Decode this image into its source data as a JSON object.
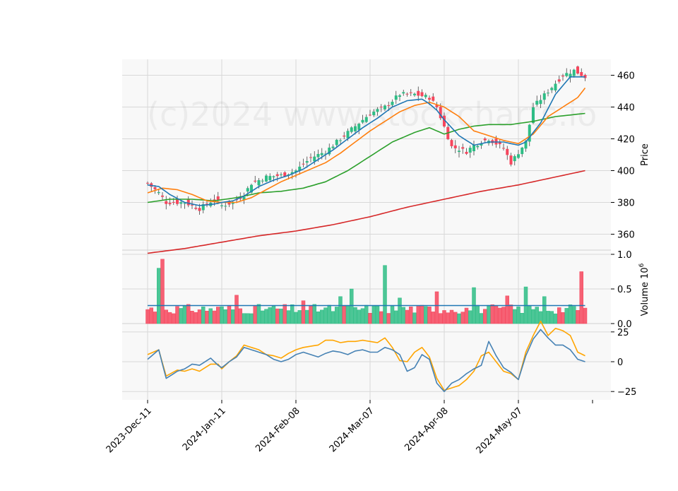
{
  "chart_data": {
    "type": "candlestick",
    "watermark": "(c)2024 www.stockcharts.io",
    "colors": {
      "up": "#2ebd85",
      "down": "#f6465d",
      "ma5": "#1f77b4",
      "ma10": "#ff7f0e",
      "ma20": "#2ca02c",
      "ma100": "#d62728",
      "vol_ma": "#1f77b4",
      "osc1": "#4682b4",
      "osc2": "#ffa500",
      "panel_bg": "#f8f8f8",
      "grid": "#d8d8d8"
    },
    "x_tick_labels": [
      "2023-Dec-11",
      "2024-Jan-11",
      "2024-Feb-08",
      "2024-Mar-07",
      "2024-Apr-08",
      "2024-May-07"
    ],
    "x_tick_index": [
      0,
      20,
      40,
      60,
      80,
      100
    ],
    "n": 119,
    "price_panel": {
      "ylabel": "Price",
      "ylim": [
        350,
        470
      ],
      "yticks": [
        360,
        380,
        400,
        420,
        440,
        460
      ],
      "anchors": {
        "close": [
          [
            0,
            392
          ],
          [
            3,
            386
          ],
          [
            5,
            380
          ],
          [
            10,
            380
          ],
          [
            14,
            376
          ],
          [
            18,
            382
          ],
          [
            20,
            378
          ],
          [
            23,
            380
          ],
          [
            26,
            385
          ],
          [
            28,
            392
          ],
          [
            32,
            396
          ],
          [
            36,
            397
          ],
          [
            40,
            400
          ],
          [
            44,
            408
          ],
          [
            48,
            412
          ],
          [
            52,
            420
          ],
          [
            56,
            428
          ],
          [
            60,
            436
          ],
          [
            64,
            440
          ],
          [
            68,
            448
          ],
          [
            72,
            448
          ],
          [
            76,
            446
          ],
          [
            78,
            440
          ],
          [
            82,
            415
          ],
          [
            86,
            412
          ],
          [
            88,
            416
          ],
          [
            92,
            420
          ],
          [
            96,
            414
          ],
          [
            98,
            405
          ],
          [
            102,
            418
          ],
          [
            104,
            440
          ],
          [
            108,
            450
          ],
          [
            112,
            460
          ],
          [
            115,
            463
          ],
          [
            118,
            459
          ]
        ],
        "ma5": [
          [
            0,
            391
          ],
          [
            3,
            390
          ],
          [
            6,
            385
          ],
          [
            10,
            380
          ],
          [
            14,
            378
          ],
          [
            18,
            379
          ],
          [
            20,
            380
          ],
          [
            23,
            381
          ],
          [
            26,
            384
          ],
          [
            30,
            390
          ],
          [
            34,
            394
          ],
          [
            38,
            397
          ],
          [
            42,
            401
          ],
          [
            46,
            407
          ],
          [
            50,
            413
          ],
          [
            54,
            420
          ],
          [
            58,
            427
          ],
          [
            62,
            433
          ],
          [
            66,
            440
          ],
          [
            70,
            444
          ],
          [
            74,
            445
          ],
          [
            76,
            442
          ],
          [
            78,
            438
          ],
          [
            80,
            432
          ],
          [
            84,
            422
          ],
          [
            88,
            416
          ],
          [
            92,
            418
          ],
          [
            96,
            418
          ],
          [
            100,
            416
          ],
          [
            102,
            418
          ],
          [
            106,
            430
          ],
          [
            110,
            448
          ],
          [
            114,
            459
          ],
          [
            118,
            459
          ]
        ],
        "ma10": [
          [
            0,
            386
          ],
          [
            4,
            389
          ],
          [
            8,
            388
          ],
          [
            12,
            385
          ],
          [
            16,
            381
          ],
          [
            20,
            380
          ],
          [
            24,
            380
          ],
          [
            28,
            383
          ],
          [
            32,
            388
          ],
          [
            36,
            393
          ],
          [
            40,
            397
          ],
          [
            44,
            401
          ],
          [
            48,
            405
          ],
          [
            52,
            411
          ],
          [
            56,
            418
          ],
          [
            60,
            425
          ],
          [
            64,
            431
          ],
          [
            68,
            437
          ],
          [
            72,
            441
          ],
          [
            76,
            443
          ],
          [
            80,
            440
          ],
          [
            84,
            434
          ],
          [
            88,
            425
          ],
          [
            92,
            422
          ],
          [
            96,
            419
          ],
          [
            100,
            417
          ],
          [
            104,
            423
          ],
          [
            108,
            434
          ],
          [
            112,
            440
          ],
          [
            116,
            446
          ],
          [
            118,
            452
          ]
        ],
        "ma20": [
          [
            0,
            380
          ],
          [
            6,
            382
          ],
          [
            12,
            382
          ],
          [
            18,
            381
          ],
          [
            24,
            383
          ],
          [
            30,
            386
          ],
          [
            36,
            387
          ],
          [
            42,
            389
          ],
          [
            48,
            393
          ],
          [
            54,
            400
          ],
          [
            60,
            409
          ],
          [
            66,
            418
          ],
          [
            72,
            424
          ],
          [
            76,
            427
          ],
          [
            80,
            423
          ],
          [
            84,
            426
          ],
          [
            88,
            428
          ],
          [
            92,
            429
          ],
          [
            98,
            429
          ],
          [
            104,
            431
          ],
          [
            110,
            434
          ],
          [
            118,
            436
          ]
        ],
        "ma100": [
          [
            0,
            348
          ],
          [
            10,
            351
          ],
          [
            20,
            355
          ],
          [
            30,
            359
          ],
          [
            40,
            362
          ],
          [
            50,
            366
          ],
          [
            60,
            371
          ],
          [
            70,
            377
          ],
          [
            80,
            382
          ],
          [
            90,
            387
          ],
          [
            100,
            391
          ],
          [
            110,
            396
          ],
          [
            118,
            400
          ]
        ]
      }
    },
    "volume_panel": {
      "ylabel": "Volume  10",
      "ylabel_exp": "6",
      "ylim": [
        0,
        1.0
      ],
      "yticks": [
        0.0,
        0.5,
        1.0
      ],
      "tick_labels": [
        "0.0",
        "0.5",
        "1.0"
      ],
      "base": 0.22,
      "spikes": [
        [
          3,
          0.8
        ],
        [
          4,
          0.93
        ],
        [
          24,
          0.41
        ],
        [
          42,
          0.33
        ],
        [
          52,
          0.39
        ],
        [
          55,
          0.5
        ],
        [
          64,
          0.84
        ],
        [
          68,
          0.37
        ],
        [
          78,
          0.46
        ],
        [
          88,
          0.52
        ],
        [
          97,
          0.4
        ],
        [
          102,
          0.53
        ],
        [
          107,
          0.39
        ],
        [
          117,
          0.75
        ]
      ],
      "ma_level": 0.26
    },
    "oscillator_panel": {
      "ylim": [
        -32,
        32
      ],
      "yticks": [
        -25,
        0,
        25
      ],
      "tick_labels": [
        "−25",
        "0",
        "25"
      ],
      "line1": [
        [
          0,
          2
        ],
        [
          3,
          10
        ],
        [
          5,
          -14
        ],
        [
          8,
          -8
        ],
        [
          10,
          -6
        ],
        [
          12,
          -2
        ],
        [
          14,
          -3
        ],
        [
          17,
          3
        ],
        [
          19,
          -3
        ],
        [
          20,
          -5
        ],
        [
          22,
          0
        ],
        [
          24,
          4
        ],
        [
          26,
          12
        ],
        [
          28,
          10
        ],
        [
          30,
          8
        ],
        [
          32,
          6
        ],
        [
          34,
          2
        ],
        [
          36,
          0
        ],
        [
          38,
          2
        ],
        [
          40,
          6
        ],
        [
          42,
          8
        ],
        [
          44,
          6
        ],
        [
          46,
          4
        ],
        [
          48,
          7
        ],
        [
          50,
          9
        ],
        [
          52,
          8
        ],
        [
          54,
          6
        ],
        [
          56,
          9
        ],
        [
          58,
          10
        ],
        [
          60,
          8
        ],
        [
          62,
          8
        ],
        [
          64,
          12
        ],
        [
          66,
          10
        ],
        [
          68,
          6
        ],
        [
          70,
          -8
        ],
        [
          72,
          -5
        ],
        [
          74,
          6
        ],
        [
          76,
          2
        ],
        [
          78,
          -18
        ],
        [
          80,
          -25
        ],
        [
          82,
          -18
        ],
        [
          84,
          -15
        ],
        [
          86,
          -10
        ],
        [
          88,
          -6
        ],
        [
          90,
          -3
        ],
        [
          92,
          17
        ],
        [
          94,
          5
        ],
        [
          96,
          -5
        ],
        [
          98,
          -9
        ],
        [
          100,
          -15
        ],
        [
          102,
          5
        ],
        [
          104,
          19
        ],
        [
          106,
          27
        ],
        [
          108,
          20
        ],
        [
          110,
          14
        ],
        [
          112,
          14
        ],
        [
          114,
          10
        ],
        [
          116,
          2
        ],
        [
          118,
          0
        ]
      ],
      "line2": [
        [
          0,
          6
        ],
        [
          3,
          10
        ],
        [
          5,
          -12
        ],
        [
          8,
          -7
        ],
        [
          10,
          -8
        ],
        [
          12,
          -6
        ],
        [
          14,
          -8
        ],
        [
          17,
          -2
        ],
        [
          19,
          -2
        ],
        [
          20,
          -6
        ],
        [
          22,
          0
        ],
        [
          24,
          5
        ],
        [
          26,
          14
        ],
        [
          28,
          12
        ],
        [
          30,
          10
        ],
        [
          32,
          6
        ],
        [
          34,
          5
        ],
        [
          36,
          3
        ],
        [
          38,
          7
        ],
        [
          40,
          10
        ],
        [
          42,
          12
        ],
        [
          44,
          13
        ],
        [
          46,
          14
        ],
        [
          48,
          18
        ],
        [
          50,
          18
        ],
        [
          52,
          16
        ],
        [
          54,
          17
        ],
        [
          56,
          17
        ],
        [
          58,
          18
        ],
        [
          60,
          17
        ],
        [
          62,
          16
        ],
        [
          64,
          20
        ],
        [
          66,
          12
        ],
        [
          68,
          1
        ],
        [
          70,
          0
        ],
        [
          72,
          8
        ],
        [
          74,
          12
        ],
        [
          76,
          4
        ],
        [
          78,
          -14
        ],
        [
          80,
          -24
        ],
        [
          82,
          -22
        ],
        [
          84,
          -20
        ],
        [
          86,
          -15
        ],
        [
          88,
          -8
        ],
        [
          90,
          5
        ],
        [
          92,
          8
        ],
        [
          94,
          0
        ],
        [
          96,
          -8
        ],
        [
          98,
          -10
        ],
        [
          100,
          -15
        ],
        [
          102,
          8
        ],
        [
          104,
          22
        ],
        [
          106,
          34
        ],
        [
          108,
          22
        ],
        [
          110,
          28
        ],
        [
          112,
          26
        ],
        [
          114,
          22
        ],
        [
          116,
          8
        ],
        [
          118,
          5
        ]
      ]
    }
  }
}
